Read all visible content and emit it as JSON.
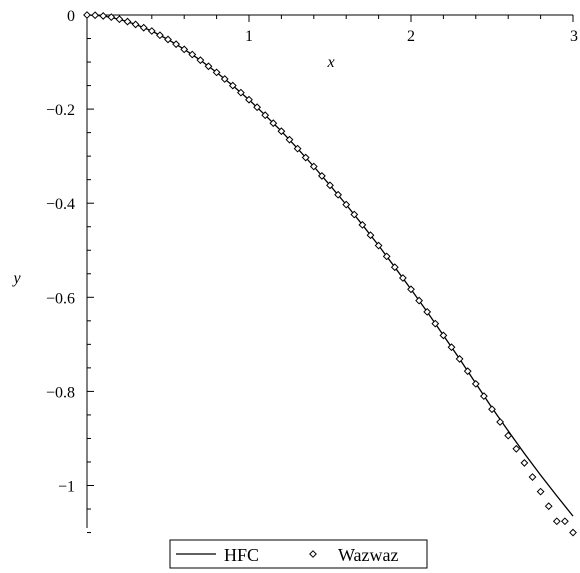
{
  "chart_data": {
    "type": "line",
    "xlabel": "x",
    "ylabel": "y",
    "xlim": [
      0,
      3
    ],
    "ylim": [
      -1.1,
      0
    ],
    "x_ticks": [
      1,
      2,
      3
    ],
    "x_tick_labels": [
      "1",
      "2",
      "3"
    ],
    "y_ticks": [
      0,
      -0.2,
      -0.4,
      -0.6,
      -0.8,
      -1.0
    ],
    "y_tick_labels": [
      "0",
      "−0.2",
      "−0.4",
      "−0.6",
      "−0.8",
      "−1"
    ],
    "grid": false,
    "legend_position": "bottom",
    "series": [
      {
        "name": "HFC",
        "style": "line",
        "color": "#000000",
        "x": [
          0,
          0.1,
          0.2,
          0.3,
          0.4,
          0.5,
          0.6,
          0.7,
          0.8,
          0.9,
          1.0,
          1.1,
          1.2,
          1.3,
          1.4,
          1.5,
          1.6,
          1.7,
          1.8,
          1.9,
          2.0,
          2.1,
          2.2,
          2.3,
          2.4,
          2.5,
          2.6,
          2.7,
          2.8,
          2.9,
          3.0
        ],
        "y": [
          0,
          -0.002,
          -0.009,
          -0.02,
          -0.034,
          -0.052,
          -0.073,
          -0.096,
          -0.122,
          -0.15,
          -0.18,
          -0.213,
          -0.247,
          -0.284,
          -0.322,
          -0.362,
          -0.403,
          -0.446,
          -0.49,
          -0.536,
          -0.583,
          -0.631,
          -0.681,
          -0.731,
          -0.783,
          -0.835,
          -0.884,
          -0.932,
          -0.978,
          -1.022,
          -1.065
        ]
      },
      {
        "name": "Wazwaz",
        "style": "markers",
        "marker": "diamond",
        "color": "#000000",
        "x": [
          0,
          0.05,
          0.1,
          0.15,
          0.2,
          0.25,
          0.3,
          0.35,
          0.4,
          0.45,
          0.5,
          0.55,
          0.6,
          0.65,
          0.7,
          0.75,
          0.8,
          0.85,
          0.9,
          0.95,
          1.0,
          1.05,
          1.1,
          1.15,
          1.2,
          1.25,
          1.3,
          1.35,
          1.4,
          1.45,
          1.5,
          1.55,
          1.6,
          1.65,
          1.7,
          1.75,
          1.8,
          1.85,
          1.9,
          1.95,
          2.0,
          2.05,
          2.1,
          2.15,
          2.2,
          2.25,
          2.3,
          2.35,
          2.4,
          2.45,
          2.5,
          2.55,
          2.6,
          2.65,
          2.7,
          2.75,
          2.8,
          2.85,
          2.9,
          2.95,
          3.0
        ],
        "y": [
          0,
          -0.0005,
          -0.002,
          -0.0045,
          -0.009,
          -0.014,
          -0.02,
          -0.027,
          -0.034,
          -0.043,
          -0.052,
          -0.062,
          -0.073,
          -0.084,
          -0.096,
          -0.109,
          -0.122,
          -0.136,
          -0.15,
          -0.165,
          -0.18,
          -0.196,
          -0.213,
          -0.23,
          -0.247,
          -0.265,
          -0.284,
          -0.303,
          -0.322,
          -0.342,
          -0.362,
          -0.382,
          -0.403,
          -0.424,
          -0.446,
          -0.468,
          -0.49,
          -0.513,
          -0.536,
          -0.559,
          -0.583,
          -0.607,
          -0.631,
          -0.656,
          -0.681,
          -0.706,
          -0.731,
          -0.757,
          -0.784,
          -0.81,
          -0.838,
          -0.865,
          -0.894,
          -0.922,
          -0.952,
          -0.982,
          -1.013,
          -1.044,
          -1.076,
          -1.076,
          -1.1
        ]
      }
    ]
  }
}
